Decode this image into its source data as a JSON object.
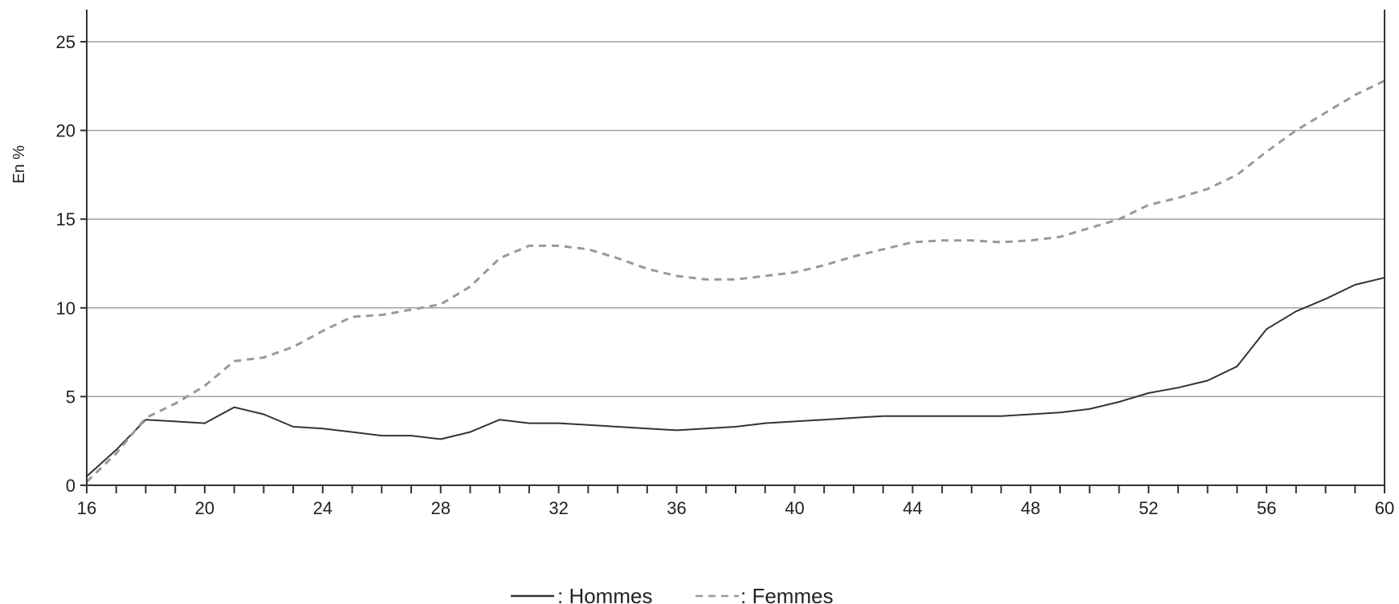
{
  "chart_data": {
    "type": "line",
    "title": "",
    "xlabel": "",
    "ylabel": "En %",
    "xlim": [
      16,
      60
    ],
    "ylim": [
      0,
      25
    ],
    "x_ticks": [
      16,
      20,
      24,
      28,
      32,
      36,
      40,
      44,
      48,
      52,
      56,
      60
    ],
    "y_ticks": [
      0,
      5,
      10,
      15,
      20,
      25
    ],
    "grid": "horizontal",
    "legend_position": "bottom-center",
    "x": [
      16,
      17,
      18,
      19,
      20,
      21,
      22,
      23,
      24,
      25,
      26,
      27,
      28,
      29,
      30,
      31,
      32,
      33,
      34,
      35,
      36,
      37,
      38,
      39,
      40,
      41,
      42,
      43,
      44,
      45,
      46,
      47,
      48,
      49,
      50,
      51,
      52,
      53,
      54,
      55,
      56,
      57,
      58,
      59,
      60
    ],
    "series": [
      {
        "name": ": Hommes",
        "style": "solid",
        "color": "#333333",
        "values": [
          0.5,
          2.0,
          3.7,
          3.6,
          3.5,
          4.4,
          4.0,
          3.3,
          3.2,
          3.0,
          2.8,
          2.8,
          2.6,
          3.0,
          3.7,
          3.5,
          3.5,
          3.4,
          3.3,
          3.2,
          3.1,
          3.2,
          3.3,
          3.5,
          3.6,
          3.7,
          3.8,
          3.9,
          3.9,
          3.9,
          3.9,
          3.9,
          4.0,
          4.1,
          4.3,
          4.7,
          5.2,
          5.5,
          5.9,
          6.7,
          8.8,
          9.8,
          10.5,
          11.3,
          11.7
        ]
      },
      {
        "name": ": Femmes",
        "style": "dashed",
        "color": "#999999",
        "values": [
          0.2,
          1.8,
          3.8,
          4.6,
          5.6,
          7.0,
          7.2,
          7.8,
          8.7,
          9.5,
          9.6,
          9.9,
          10.2,
          11.2,
          12.8,
          13.5,
          13.5,
          13.3,
          12.8,
          12.2,
          11.8,
          11.6,
          11.6,
          11.8,
          12.0,
          12.4,
          12.9,
          13.3,
          13.7,
          13.8,
          13.8,
          13.7,
          13.8,
          14.0,
          14.5,
          15.0,
          15.8,
          16.2,
          16.7,
          17.5,
          18.8,
          20.0,
          21.0,
          22.0,
          22.8
        ]
      }
    ]
  }
}
